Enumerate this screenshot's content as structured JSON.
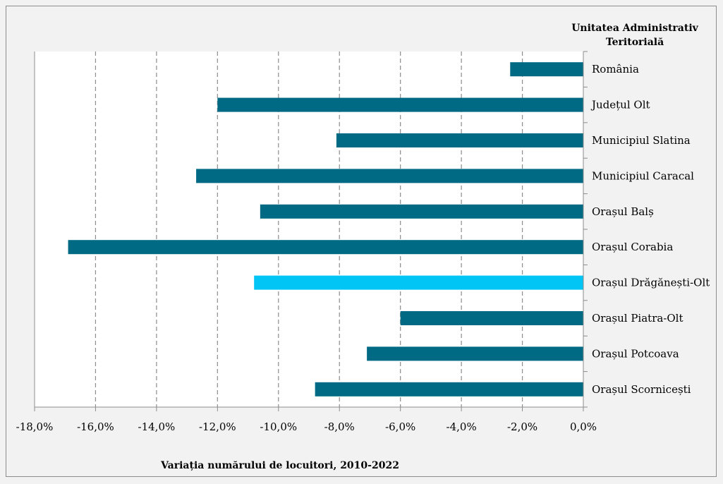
{
  "chart_data": {
    "type": "bar",
    "orientation": "horizontal",
    "legend_title": [
      "Unitatea Administrativ",
      "Teritorială"
    ],
    "xlabel": "Variația numărului de locuitori, 2010-2022",
    "xlim": [
      -0.18,
      0.0
    ],
    "x_ticks": [
      -0.18,
      -0.16,
      -0.14,
      -0.12,
      -0.1,
      -0.08,
      -0.06,
      -0.04,
      -0.02,
      0.0
    ],
    "x_tick_labels": [
      "-18,0%",
      "-16,0%",
      "-14,0%",
      "-12,0%",
      "-10,0%",
      "-8,0%",
      "-6,0%",
      "-4,0%",
      "-2,0%",
      "0,0%"
    ],
    "grid": "vertical dashed",
    "categories": [
      "România",
      "Județul Olt",
      "Municipiul Slatina",
      "Municipiul Caracal",
      "Orașul Balș",
      "Orașul Corabia",
      "Orașul Drăgănești-Olt",
      "Orașul Piatra-Olt",
      "Orașul Potcoava",
      "Orașul Scornicești"
    ],
    "values": [
      -0.024,
      -0.12,
      -0.081,
      -0.127,
      -0.106,
      -0.169,
      -0.108,
      -0.06,
      -0.071,
      -0.088
    ],
    "colors": {
      "default": "#006a84",
      "highlight": "#00c5f5",
      "highlighted_category": "Orașul Drăgănești-Olt"
    }
  }
}
